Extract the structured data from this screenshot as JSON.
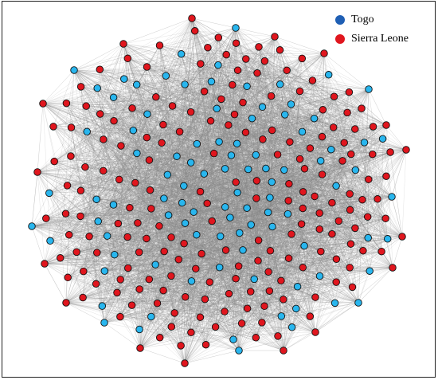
{
  "legend": {
    "items": [
      {
        "label": "Togo",
        "color": "#1f5fb4"
      },
      {
        "label": "Sierra Leone",
        "color": "#e0161e"
      }
    ]
  },
  "graph": {
    "node_colors": {
      "togo": "#29b6ee",
      "sierra_leone": "#e0161e"
    },
    "edge_color": "#8a8a8a"
  }
}
